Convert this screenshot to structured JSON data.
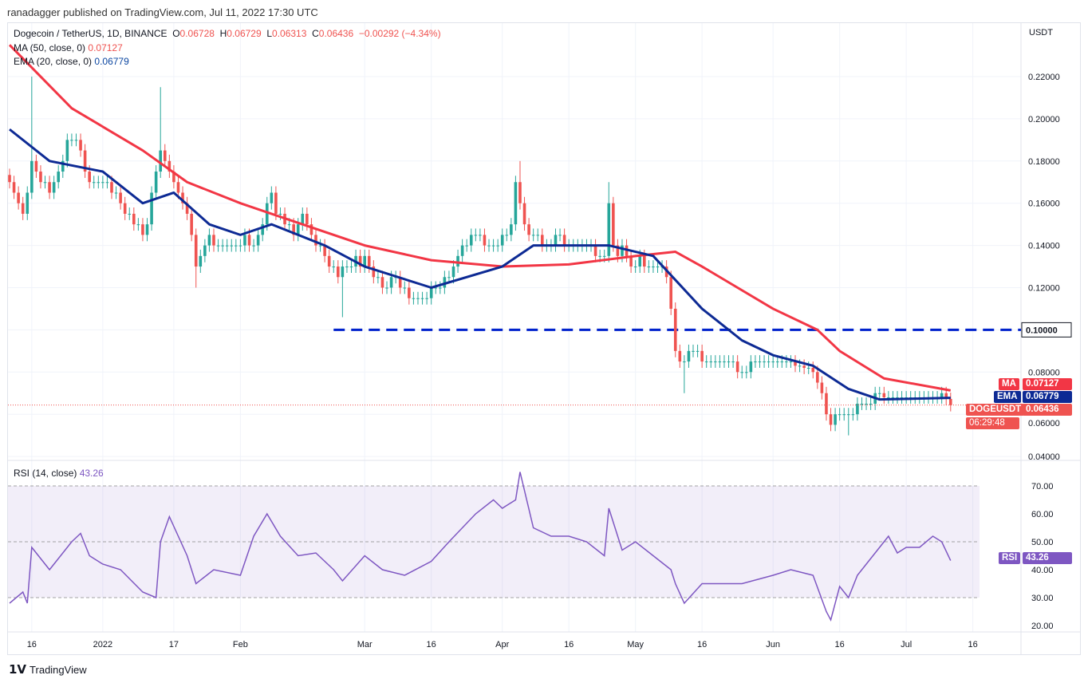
{
  "header": {
    "published": "ranadagger published on TradingView.com, Jul 11, 2022 17:30 UTC"
  },
  "legend": {
    "symbol": "Dogecoin / TetherUS, 1D, BINANCE",
    "o_label": "O",
    "o": "0.06728",
    "h_label": "H",
    "h": "0.06729",
    "l_label": "L",
    "l": "0.06313",
    "c_label": "C",
    "c": "0.06436",
    "change": "−0.00292 (−4.34%)",
    "ma_label": "MA (50, close, 0)",
    "ma_value": "0.07127",
    "ema_label": "EMA (20, close, 0)",
    "ema_value": "0.06779",
    "rsi_label": "RSI (14, close)",
    "rsi_value": "43.26"
  },
  "tags": {
    "ma": "MA",
    "ma_value": "0.07127",
    "ema": "EMA",
    "ema_value": "0.06779",
    "sym": "DOGEUSDT",
    "sym_value": "0.06436",
    "countdown": "06:29:48",
    "rsi": "RSI",
    "rsi_value": "43.26"
  },
  "footer": {
    "brand": "TradingView"
  },
  "colors": {
    "up": "#26a69a",
    "down": "#ef5350",
    "ma": "#f23645",
    "ema": "#0d2a94",
    "level": "#0022cc",
    "rsi": "#7e57c2"
  },
  "chart_data": [
    {
      "type": "candlestick",
      "title": "Dogecoin / TetherUS, 1D, BINANCE",
      "yaxis_unit": "USDT",
      "ylim": [
        0.03,
        0.235
      ],
      "yticks": [
        "0.22000",
        "0.20000",
        "0.18000",
        "0.16000",
        "0.14000",
        "0.12000",
        "0.10000",
        "0.08000",
        "0.06000",
        "0.04000"
      ],
      "xticks": [
        "16",
        "2022",
        "17",
        "Feb",
        "Mar",
        "16",
        "Apr",
        "16",
        "May",
        "16",
        "Jun",
        "16",
        "Jul",
        "16"
      ],
      "start_date": "2021-12-11",
      "closes": [
        0.17,
        0.165,
        0.16,
        0.155,
        0.165,
        0.18,
        0.175,
        0.17,
        0.17,
        0.165,
        0.17,
        0.175,
        0.18,
        0.19,
        0.19,
        0.19,
        0.185,
        0.175,
        0.17,
        0.17,
        0.17,
        0.17,
        0.17,
        0.165,
        0.165,
        0.16,
        0.155,
        0.155,
        0.15,
        0.15,
        0.145,
        0.15,
        0.165,
        0.175,
        0.185,
        0.18,
        0.175,
        0.17,
        0.165,
        0.16,
        0.155,
        0.145,
        0.13,
        0.135,
        0.14,
        0.145,
        0.14,
        0.14,
        0.14,
        0.14,
        0.14,
        0.14,
        0.14,
        0.145,
        0.14,
        0.14,
        0.145,
        0.15,
        0.16,
        0.165,
        0.155,
        0.155,
        0.15,
        0.15,
        0.145,
        0.15,
        0.155,
        0.15,
        0.145,
        0.14,
        0.14,
        0.135,
        0.13,
        0.13,
        0.125,
        0.13,
        0.13,
        0.13,
        0.135,
        0.13,
        0.135,
        0.13,
        0.125,
        0.125,
        0.12,
        0.12,
        0.125,
        0.125,
        0.12,
        0.12,
        0.115,
        0.115,
        0.115,
        0.115,
        0.115,
        0.12,
        0.12,
        0.12,
        0.125,
        0.125,
        0.13,
        0.135,
        0.14,
        0.14,
        0.145,
        0.145,
        0.145,
        0.14,
        0.14,
        0.14,
        0.14,
        0.145,
        0.145,
        0.15,
        0.17,
        0.16,
        0.15,
        0.145,
        0.145,
        0.145,
        0.14,
        0.14,
        0.14,
        0.145,
        0.145,
        0.14,
        0.14,
        0.14,
        0.14,
        0.14,
        0.14,
        0.14,
        0.135,
        0.135,
        0.135,
        0.16,
        0.14,
        0.135,
        0.14,
        0.135,
        0.13,
        0.13,
        0.135,
        0.13,
        0.13,
        0.13,
        0.13,
        0.13,
        0.125,
        0.11,
        0.09,
        0.085,
        0.085,
        0.09,
        0.09,
        0.09,
        0.085,
        0.085,
        0.085,
        0.085,
        0.085,
        0.085,
        0.085,
        0.085,
        0.08,
        0.08,
        0.08,
        0.085,
        0.085,
        0.085,
        0.085,
        0.085,
        0.085,
        0.085,
        0.085,
        0.085,
        0.085,
        0.083,
        0.083,
        0.082,
        0.082,
        0.08,
        0.075,
        0.07,
        0.06,
        0.055,
        0.06,
        0.06,
        0.06,
        0.06,
        0.06,
        0.065,
        0.065,
        0.065,
        0.065,
        0.07,
        0.07,
        0.068,
        0.068,
        0.068,
        0.068,
        0.068,
        0.068,
        0.068,
        0.068,
        0.068,
        0.068,
        0.068,
        0.068,
        0.068,
        0.07,
        0.06728,
        0.06436
      ],
      "notable_wicks": [
        {
          "date": "2021-12-16",
          "high": 0.22
        },
        {
          "date": "2022-01-14",
          "high": 0.215
        },
        {
          "date": "2022-01-22",
          "low": 0.12
        },
        {
          "date": "2022-02-24",
          "low": 0.106
        },
        {
          "date": "2022-04-05",
          "high": 0.18
        },
        {
          "date": "2022-04-25",
          "high": 0.17
        },
        {
          "date": "2022-05-12",
          "low": 0.07
        },
        {
          "date": "2022-06-18",
          "low": 0.05
        }
      ],
      "ma50": [
        [
          "2021-12-11",
          0.235
        ],
        [
          "2021-12-25",
          0.205
        ],
        [
          "2022-01-10",
          0.185
        ],
        [
          "2022-01-20",
          0.17
        ],
        [
          "2022-02-01",
          0.16
        ],
        [
          "2022-02-15",
          0.15
        ],
        [
          "2022-03-01",
          0.14
        ],
        [
          "2022-03-16",
          0.133
        ],
        [
          "2022-04-01",
          0.13
        ],
        [
          "2022-04-16",
          0.131
        ],
        [
          "2022-05-01",
          0.135
        ],
        [
          "2022-05-10",
          0.137
        ],
        [
          "2022-05-16",
          0.13
        ],
        [
          "2022-06-01",
          0.11
        ],
        [
          "2022-06-11",
          0.1
        ],
        [
          "2022-06-16",
          0.09
        ],
        [
          "2022-06-26",
          0.077
        ],
        [
          "2022-07-11",
          0.07127
        ]
      ],
      "ema20": [
        [
          "2021-12-11",
          0.195
        ],
        [
          "2021-12-20",
          0.18
        ],
        [
          "2022-01-01",
          0.175
        ],
        [
          "2022-01-10",
          0.16
        ],
        [
          "2022-01-17",
          0.165
        ],
        [
          "2022-01-25",
          0.15
        ],
        [
          "2022-02-01",
          0.145
        ],
        [
          "2022-02-08",
          0.15
        ],
        [
          "2022-02-20",
          0.14
        ],
        [
          "2022-03-01",
          0.13
        ],
        [
          "2022-03-16",
          0.12
        ],
        [
          "2022-04-01",
          0.13
        ],
        [
          "2022-04-08",
          0.14
        ],
        [
          "2022-04-25",
          0.14
        ],
        [
          "2022-05-05",
          0.135
        ],
        [
          "2022-05-16",
          0.11
        ],
        [
          "2022-05-25",
          0.095
        ],
        [
          "2022-06-01",
          0.088
        ],
        [
          "2022-06-10",
          0.083
        ],
        [
          "2022-06-18",
          0.072
        ],
        [
          "2022-06-25",
          0.067
        ],
        [
          "2022-07-11",
          0.06779
        ]
      ],
      "horizontal_level": {
        "value": 0.1,
        "from": "2022-02-22",
        "style": "dashed"
      }
    },
    {
      "type": "line",
      "title": "RSI (14, close)",
      "ylim": [
        17,
        77
      ],
      "yticks": [
        "70.00",
        "60.00",
        "50.00",
        "40.00",
        "30.00",
        "20.00"
      ],
      "band": [
        30,
        70
      ],
      "points": [
        [
          "2021-12-11",
          28
        ],
        [
          "2021-12-14",
          32
        ],
        [
          "2021-12-15",
          28
        ],
        [
          "2021-12-16",
          48
        ],
        [
          "2021-12-20",
          40
        ],
        [
          "2021-12-25",
          50
        ],
        [
          "2021-12-27",
          53
        ],
        [
          "2021-12-29",
          45
        ],
        [
          "2022-01-01",
          42
        ],
        [
          "2022-01-05",
          40
        ],
        [
          "2022-01-10",
          32
        ],
        [
          "2022-01-13",
          30
        ],
        [
          "2022-01-14",
          50
        ],
        [
          "2022-01-16",
          59
        ],
        [
          "2022-01-20",
          45
        ],
        [
          "2022-01-22",
          35
        ],
        [
          "2022-01-26",
          40
        ],
        [
          "2022-02-01",
          38
        ],
        [
          "2022-02-04",
          52
        ],
        [
          "2022-02-07",
          60
        ],
        [
          "2022-02-10",
          52
        ],
        [
          "2022-02-14",
          45
        ],
        [
          "2022-02-18",
          46
        ],
        [
          "2022-02-22",
          40
        ],
        [
          "2022-02-24",
          36
        ],
        [
          "2022-03-01",
          45
        ],
        [
          "2022-03-05",
          40
        ],
        [
          "2022-03-10",
          38
        ],
        [
          "2022-03-16",
          43
        ],
        [
          "2022-03-20",
          50
        ],
        [
          "2022-03-26",
          60
        ],
        [
          "2022-03-30",
          65
        ],
        [
          "2022-04-01",
          62
        ],
        [
          "2022-04-04",
          65
        ],
        [
          "2022-04-05",
          75
        ],
        [
          "2022-04-08",
          55
        ],
        [
          "2022-04-12",
          52
        ],
        [
          "2022-04-16",
          52
        ],
        [
          "2022-04-20",
          50
        ],
        [
          "2022-04-24",
          45
        ],
        [
          "2022-04-25",
          62
        ],
        [
          "2022-04-28",
          47
        ],
        [
          "2022-05-01",
          50
        ],
        [
          "2022-05-05",
          45
        ],
        [
          "2022-05-09",
          40
        ],
        [
          "2022-05-10",
          35
        ],
        [
          "2022-05-12",
          28
        ],
        [
          "2022-05-16",
          35
        ],
        [
          "2022-05-25",
          35
        ],
        [
          "2022-06-01",
          38
        ],
        [
          "2022-06-05",
          40
        ],
        [
          "2022-06-10",
          38
        ],
        [
          "2022-06-13",
          25
        ],
        [
          "2022-06-14",
          22
        ],
        [
          "2022-06-16",
          34
        ],
        [
          "2022-06-18",
          30
        ],
        [
          "2022-06-20",
          38
        ],
        [
          "2022-06-25",
          48
        ],
        [
          "2022-06-27",
          52
        ],
        [
          "2022-06-29",
          46
        ],
        [
          "2022-07-01",
          48
        ],
        [
          "2022-07-04",
          48
        ],
        [
          "2022-07-07",
          52
        ],
        [
          "2022-07-09",
          50
        ],
        [
          "2022-07-11",
          43.26
        ]
      ]
    }
  ]
}
